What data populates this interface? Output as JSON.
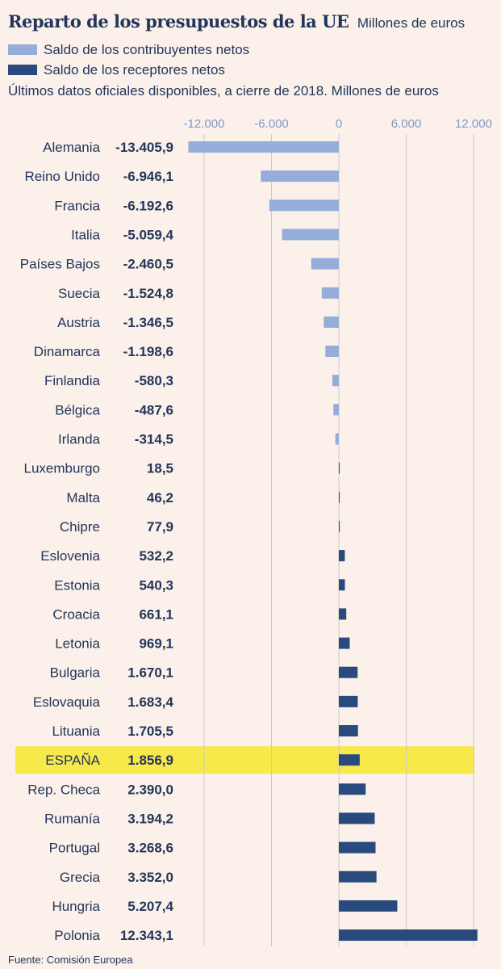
{
  "header": {
    "title": "Reparto de los presupuestos de la UE",
    "unit": "Millones de euros",
    "subtitle": "Últimos datos oficiales disponibles, a cierre de 2018. Millones de euros"
  },
  "legend": [
    {
      "label": "Saldo de los contribuyentes netos",
      "color": "#95add9"
    },
    {
      "label": "Saldo de los receptores netos",
      "color": "#2a4a7e"
    }
  ],
  "source": "Fuente: Comisión Europea",
  "colors": {
    "background": "#fbf1ea",
    "text": "#22365c",
    "contributor": "#95add9",
    "receiver": "#2a4a7e",
    "highlight": "#f7e94a",
    "axis_tick_text": "#7f98c9",
    "grid": "#cfc9c6"
  },
  "chart_data": {
    "type": "bar",
    "orientation": "horizontal",
    "xlim": [
      -13405.9,
      12343.1
    ],
    "xticks": [
      -12000,
      -6000,
      0,
      6000,
      12000
    ],
    "xtick_labels": [
      "-12.000",
      "-6.000",
      "0",
      "6.000",
      "12.000"
    ],
    "highlight_category": "ESPAÑA",
    "categories": [
      "Alemania",
      "Reino Unido",
      "Francia",
      "Italia",
      "Países Bajos",
      "Suecia",
      "Austria",
      "Dinamarca",
      "Finlandia",
      "Bélgica",
      "Irlanda",
      "Luxemburgo",
      "Malta",
      "Chipre",
      "Eslovenia",
      "Estonia",
      "Croacia",
      "Letonia",
      "Bulgaria",
      "Eslovaquia",
      "Lituania",
      "ESPAÑA",
      "Rep. Checa",
      "Rumanía",
      "Portugal",
      "Grecia",
      "Hungria",
      "Polonia"
    ],
    "values": [
      -13405.9,
      -6946.1,
      -6192.6,
      -5059.4,
      -2460.5,
      -1524.8,
      -1346.5,
      -1198.6,
      -580.3,
      -487.6,
      -314.5,
      18.5,
      46.2,
      77.9,
      532.2,
      540.3,
      661.1,
      969.1,
      1670.1,
      1683.4,
      1705.5,
      1856.9,
      2390.0,
      3194.2,
      3268.6,
      3352.0,
      5207.4,
      12343.1
    ],
    "value_labels": [
      "-13.405,9",
      "-6.946,1",
      "-6.192,6",
      "-5.059,4",
      "-2.460,5",
      "-1.524,8",
      "-1.346,5",
      "-1.198,6",
      "-580,3",
      "-487,6",
      "-314,5",
      "18,5",
      "46,2",
      "77,9",
      "532,2",
      "540,3",
      "661,1",
      "969,1",
      "1.670,1",
      "1.683,4",
      "1.705,5",
      "1.856,9",
      "2.390,0",
      "3.194,2",
      "3.268,6",
      "3.352,0",
      "5.207,4",
      "12.343,1"
    ]
  }
}
